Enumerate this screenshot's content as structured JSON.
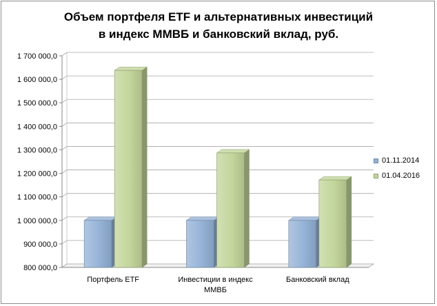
{
  "chart_data": {
    "type": "bar",
    "title_lines": [
      "Объем портфеля ETF и альтернативных  инвестиций",
      "в индекс ММВБ и банковский  вклад,  руб."
    ],
    "categories": [
      [
        "Портфель ETF"
      ],
      [
        "Инвестиции в индекс",
        "ММВБ"
      ],
      [
        "Банковский вклад"
      ]
    ],
    "series": [
      {
        "name": "01.11.2014",
        "color": "#95b3d7",
        "values": [
          1000000,
          1000000,
          1000000
        ]
      },
      {
        "name": "01.04.2016",
        "color": "#c3d69b",
        "values": [
          1638000,
          1287000,
          1172000
        ]
      }
    ],
    "ylim": [
      800000,
      1700000
    ],
    "yticks": [
      "800 000,0",
      "900 000,0",
      "1 000 000,0",
      "1 100 000,0",
      "1 200 000,0",
      "1 300 000,0",
      "1 400 000,0",
      "1 500 000,0",
      "1 600 000,0",
      "1 700 000,0"
    ],
    "ytick_values": [
      800000,
      900000,
      1000000,
      1100000,
      1200000,
      1300000,
      1400000,
      1500000,
      1600000,
      1700000
    ],
    "grid": true,
    "legend_position": "right",
    "xlabel": "",
    "ylabel": ""
  }
}
